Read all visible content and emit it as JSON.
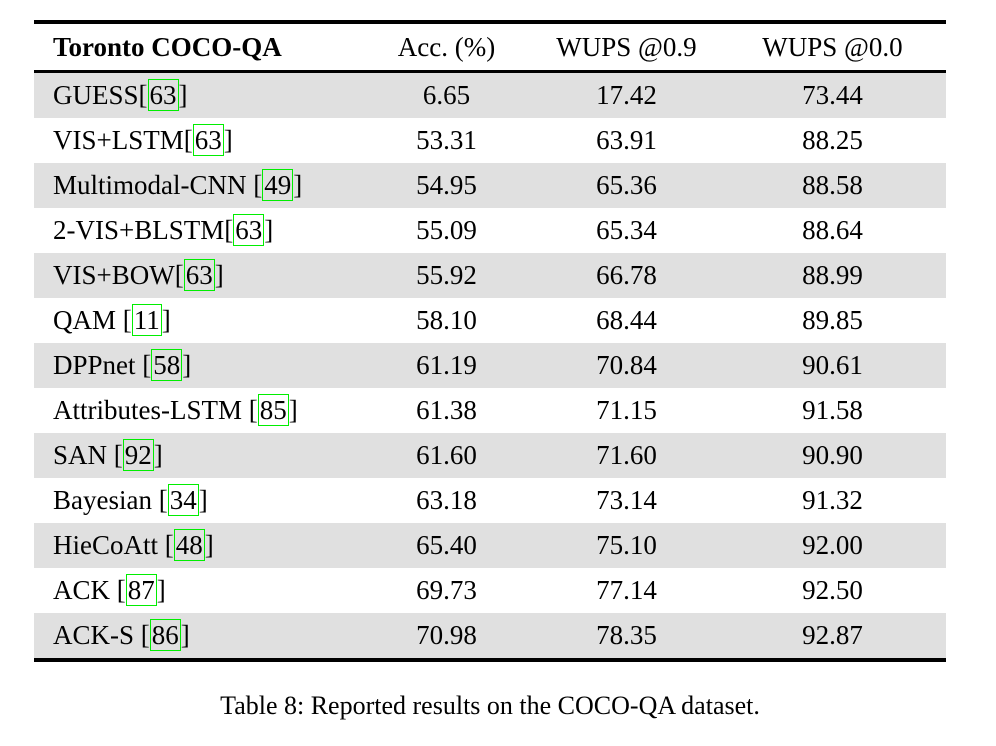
{
  "table": {
    "headers": [
      "Toronto COCO-QA",
      "Acc. (%)",
      "WUPS @0.9",
      "WUPS @0.0"
    ],
    "rows": [
      {
        "label": "GUESS[",
        "citation": "63",
        "label_end": "]",
        "acc": "6.65",
        "wups09": "17.42",
        "wups00": "73.44",
        "shaded": true
      },
      {
        "label": "VIS+LSTM[",
        "citation": "63",
        "label_end": "]",
        "acc": "53.31",
        "wups09": "63.91",
        "wups00": "88.25",
        "shaded": false
      },
      {
        "label": "Multimodal-CNN [",
        "citation": "49",
        "label_end": "]",
        "acc": "54.95",
        "wups09": "65.36",
        "wups00": "88.58",
        "shaded": true
      },
      {
        "label": "2-VIS+BLSTM[",
        "citation": "63",
        "label_end": "]",
        "acc": "55.09",
        "wups09": "65.34",
        "wups00": "88.64",
        "shaded": false
      },
      {
        "label": "VIS+BOW[",
        "citation": "63",
        "label_end": "]",
        "acc": "55.92",
        "wups09": "66.78",
        "wups00": "88.99",
        "shaded": true
      },
      {
        "label": "QAM [",
        "citation": "11",
        "label_end": "]",
        "acc": "58.10",
        "wups09": "68.44",
        "wups00": "89.85",
        "shaded": false
      },
      {
        "label": "DPPnet [",
        "citation": "58",
        "label_end": "]",
        "acc": "61.19",
        "wups09": "70.84",
        "wups00": "90.61",
        "shaded": true
      },
      {
        "label": "Attributes-LSTM [",
        "citation": "85",
        "label_end": "]",
        "acc": "61.38",
        "wups09": "71.15",
        "wups00": "91.58",
        "shaded": false
      },
      {
        "label": "SAN [",
        "citation": "92",
        "label_end": "]",
        "acc": "61.60",
        "wups09": "71.60",
        "wups00": "90.90",
        "shaded": true
      },
      {
        "label": "Bayesian [",
        "citation": "34",
        "label_end": "]",
        "acc": "63.18",
        "wups09": "73.14",
        "wups00": "91.32",
        "shaded": false
      },
      {
        "label": "HieCoAtt [",
        "citation": "48",
        "label_end": "]",
        "acc": "65.40",
        "wups09": "75.10",
        "wups00": "92.00",
        "shaded": true
      },
      {
        "label": "ACK [",
        "citation": "87",
        "label_end": "]",
        "acc": "69.73",
        "wups09": "77.14",
        "wups00": "92.50",
        "shaded": false
      },
      {
        "label": "ACK-S [",
        "citation": "86",
        "label_end": "]",
        "acc": "70.98",
        "wups09": "78.35",
        "wups00": "92.87",
        "shaded": true
      }
    ]
  },
  "caption": "Table 8: Reported results on the COCO-QA dataset.",
  "colors": {
    "row_shade": "#e0e0e0",
    "citation_box": "#00ee00",
    "rule": "#000000",
    "text": "#000000",
    "background": "#ffffff"
  }
}
